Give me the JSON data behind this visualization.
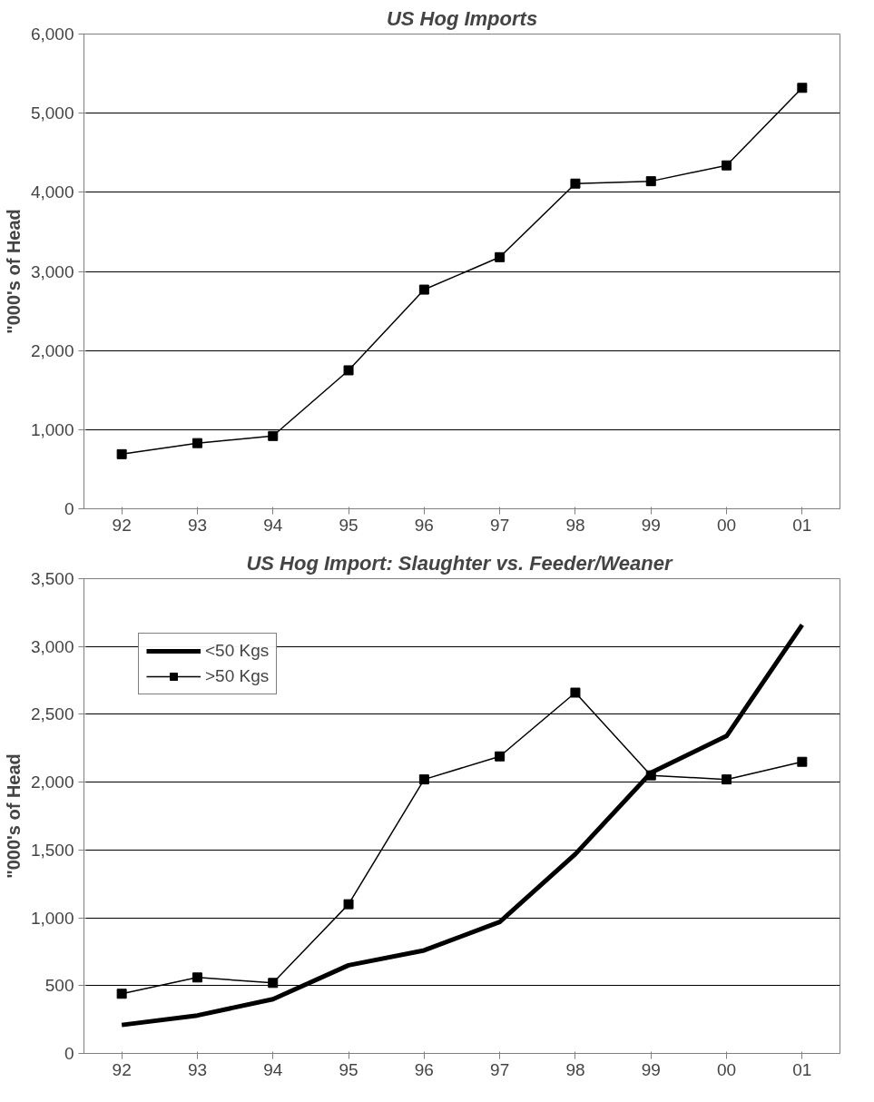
{
  "chart_data": [
    {
      "type": "line",
      "title": "US Hog Imports",
      "ylabel": "\"000's of Head",
      "categories": [
        "92",
        "93",
        "94",
        "95",
        "96",
        "97",
        "98",
        "99",
        "00",
        "01"
      ],
      "series": [
        {
          "color": "#000000",
          "marker": "square",
          "values": [
            690,
            830,
            920,
            1750,
            2770,
            3180,
            4110,
            4140,
            4340,
            5320
          ]
        }
      ],
      "ylim": [
        0,
        6000
      ],
      "yticks": [
        {
          "value": 0,
          "label": "0"
        },
        {
          "value": 1000,
          "label": "1,000"
        },
        {
          "value": 2000,
          "label": "2,000"
        },
        {
          "value": 3000,
          "label": "3,000"
        },
        {
          "value": 4000,
          "label": "4,000"
        },
        {
          "value": 5000,
          "label": "5,000"
        },
        {
          "value": 6000,
          "label": "6,000"
        }
      ],
      "grid": "y",
      "legend": false
    },
    {
      "type": "line",
      "title": "US Hog Import:  Slaughter vs. Feeder/Weaner",
      "ylabel": "\"000's of Head",
      "categories": [
        "92",
        "93",
        "94",
        "95",
        "96",
        "97",
        "98",
        "99",
        "00",
        "01"
      ],
      "series": [
        {
          "name": "<50 Kgs",
          "color": "#000000",
          "marker": "none",
          "values": [
            210,
            280,
            400,
            650,
            760,
            970,
            1470,
            2070,
            2340,
            3160
          ]
        },
        {
          "name": ">50 Kgs",
          "color": "#000000",
          "marker": "square",
          "values": [
            440,
            560,
            520,
            1100,
            2020,
            2190,
            2660,
            2050,
            2020,
            2150
          ]
        }
      ],
      "ylim": [
        0,
        3500
      ],
      "yticks": [
        {
          "value": 0,
          "label": "0"
        },
        {
          "value": 500,
          "label": "500"
        },
        {
          "value": 1000,
          "label": "1,000"
        },
        {
          "value": 1500,
          "label": "1,500"
        },
        {
          "value": 2000,
          "label": "2,000"
        },
        {
          "value": 2500,
          "label": "2,500"
        },
        {
          "value": 3000,
          "label": "3,000"
        },
        {
          "value": 3500,
          "label": "3,500"
        }
      ],
      "grid": "y",
      "legend": "top left"
    }
  ]
}
